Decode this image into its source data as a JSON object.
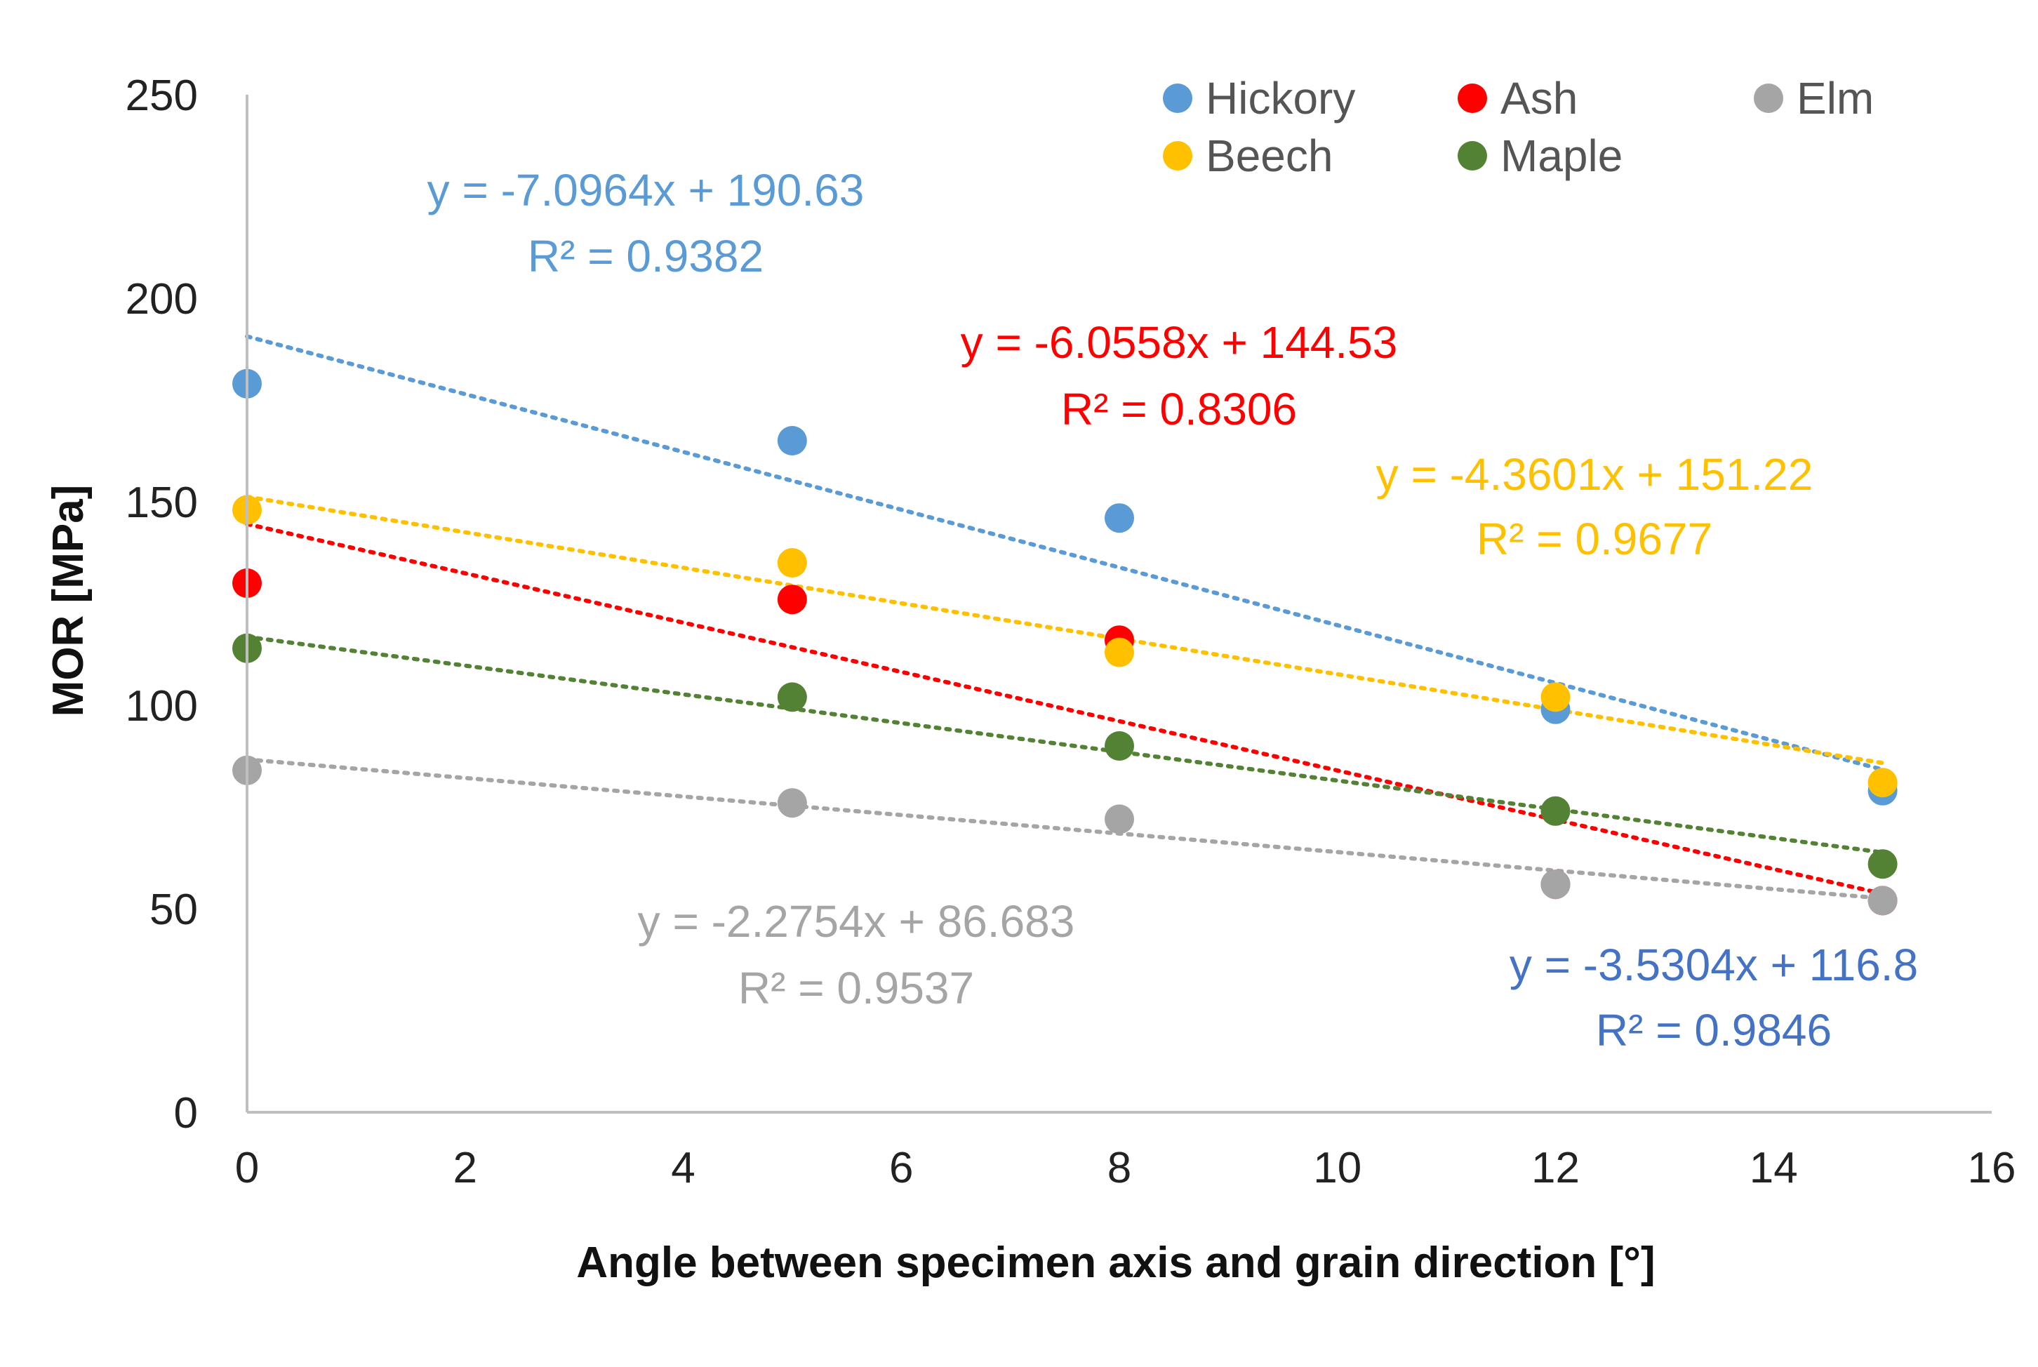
{
  "chart_data": {
    "type": "scatter",
    "title": "",
    "xlabel": "Angle between specimen axis and grain direction [°]",
    "ylabel": "MOR [MPa]",
    "xlim": [
      0,
      16
    ],
    "ylim": [
      0,
      250
    ],
    "x_ticks": [
      0,
      2,
      4,
      6,
      8,
      10,
      12,
      14,
      16
    ],
    "y_ticks": [
      0,
      50,
      100,
      150,
      200,
      250
    ],
    "x_tick_labels": [
      "0",
      "2",
      "4",
      "6",
      "8",
      "10",
      "12",
      "14",
      "16"
    ],
    "y_tick_labels": [
      "0",
      "50",
      "100",
      "150",
      "200",
      "250"
    ],
    "grid": false,
    "legend_position": "top-right",
    "series": [
      {
        "name": "Hickory",
        "color": "#5b9bd5",
        "x": [
          0,
          5,
          8,
          12,
          15
        ],
        "y": [
          179,
          165,
          146,
          99,
          79
        ],
        "trendline": {
          "slope": -7.0964,
          "intercept": 190.63,
          "equation": "y = -7.0964x + 190.63",
          "r2": "R² = 0.9382",
          "label_color": "#5b9bd5"
        }
      },
      {
        "name": "Ash",
        "color": "#ff0000",
        "x": [
          0,
          5,
          8,
          12,
          15
        ],
        "y": [
          130,
          126,
          116,
          56,
          52
        ],
        "trendline": {
          "slope": -6.0558,
          "intercept": 144.53,
          "equation": "y = -6.0558x + 144.53",
          "r2": "R² = 0.8306",
          "label_color": "#ff0000"
        }
      },
      {
        "name": "Elm",
        "color": "#a5a5a5",
        "x": [
          0,
          5,
          8,
          12,
          15
        ],
        "y": [
          84,
          76,
          72,
          56,
          52
        ],
        "trendline": {
          "slope": -2.2754,
          "intercept": 86.683,
          "equation": "y = -2.2754x + 86.683",
          "r2": "R² = 0.9537",
          "label_color": "#a5a5a5"
        }
      },
      {
        "name": "Beech",
        "color": "#ffc000",
        "x": [
          0,
          5,
          8,
          12,
          15
        ],
        "y": [
          148,
          135,
          113,
          102,
          81
        ],
        "trendline": {
          "slope": -4.3601,
          "intercept": 151.22,
          "equation": "y = -4.3601x + 151.22",
          "r2": "R² = 0.9677",
          "label_color": "#ffc000"
        }
      },
      {
        "name": "Maple",
        "color": "#548235",
        "x": [
          0,
          5,
          8,
          12,
          15
        ],
        "y": [
          114,
          102,
          90,
          74,
          61
        ],
        "trendline": {
          "slope": -3.5304,
          "intercept": 116.8,
          "equation": "y = -3.5304x + 116.8",
          "r2": "R² = 0.9846",
          "label_color": "#4472c4"
        }
      }
    ]
  }
}
